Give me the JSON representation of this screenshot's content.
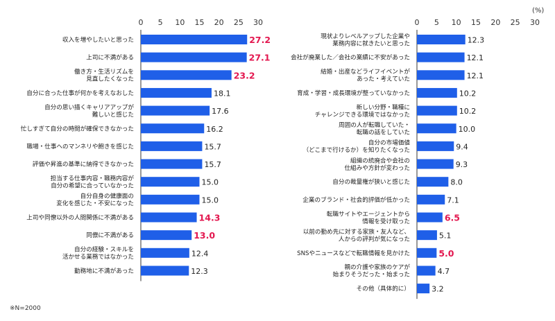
{
  "note": "※N=2000",
  "unit": "(%)",
  "colors": {
    "bar": "#1f5fe8",
    "highlight": "#e3174f",
    "axis": "#333333",
    "label": "#222222"
  },
  "chart_data": [
    {
      "type": "bar",
      "orientation": "horizontal",
      "xlim": [
        0,
        30
      ],
      "xticks": [
        0,
        5,
        10,
        15,
        20,
        25,
        30
      ],
      "grid": false,
      "categories": [
        "収入を増やしたいと思った",
        "上司に不満がある",
        "働き方・生活リズムを\n見直したくなった",
        "自分に合った仕事が何かを考えなおした",
        "自分の思い描くキャリアアップが\n難しいと感じた",
        "忙しすぎて自分の時間が確保できなかった",
        "職場・仕事へのマンネリや飽きを感じた",
        "評価や昇進の基準に納得できなかった",
        "担当する仕事内容・職務内容が\n自分の希望に合っていなかった",
        "自分自身の健康面の\n変化を感じた・不安になった",
        "上司や同僚以外の人間関係に不満がある",
        "同僚に不満がある",
        "自分の経験・スキルを\n活かせる業務ではなかった",
        "勤務地に不満があった"
      ],
      "values": [
        27.2,
        27.1,
        23.2,
        18.1,
        17.6,
        16.2,
        15.7,
        15.7,
        15.0,
        15.0,
        14.3,
        13.0,
        12.4,
        12.3
      ],
      "value_labels": [
        "27.2",
        "27.1",
        "23.2",
        "18.1",
        "17.6",
        "16.2",
        "15.7",
        "15.7",
        "15.0",
        "15.0",
        "14.3",
        "13.0",
        "12.4",
        "12.3"
      ],
      "highlight": [
        true,
        true,
        true,
        false,
        false,
        false,
        false,
        false,
        false,
        false,
        true,
        true,
        false,
        false
      ]
    },
    {
      "type": "bar",
      "orientation": "horizontal",
      "xlim": [
        0,
        30
      ],
      "xticks": [
        0,
        5,
        10,
        15,
        20,
        25,
        30
      ],
      "grid": false,
      "categories": [
        "現状よりレベルアップした企業や\n業務内容に就きたいと思った",
        "会社が廃業した／会社の業績に不安があった",
        "結婚・出産などライフイベントが\nあった・考えていた",
        "育成・学習・成長環境が整っていなかった",
        "新しい分野・職種に\nチャレンジできる環境ではなかった",
        "周囲の人が転職していた・\n転職の話をしていた",
        "自分の市場価値\n（どこまで行けるか）を知りたくなった",
        "組織の統廃合や会社の\n仕組みや方針が変わった",
        "自分の裁量権が狭いと感じた",
        "企業のブランド・社会的評価が低かった",
        "転職サイトやエージェントから\n情報を受け取った",
        "以前の勤め先に対する家族・友人など、\n人からの評判が気になった",
        "SNSやニュースなどで転職情報を見かけた",
        "親の介護や家族のケアが\n始まりそうだった・始まった",
        "その他（具体的に）"
      ],
      "values": [
        12.3,
        12.1,
        12.1,
        10.2,
        10.2,
        10.0,
        9.4,
        9.3,
        8.0,
        7.1,
        6.5,
        5.1,
        5.0,
        4.7,
        3.2
      ],
      "value_labels": [
        "12.3",
        "12.1",
        "12.1",
        "10.2",
        "10.2",
        "10.0",
        "9.4",
        "9.3",
        "8.0",
        "7.1",
        "6.5",
        "5.1",
        "5.0",
        "4.7",
        "3.2"
      ],
      "highlight": [
        false,
        false,
        false,
        false,
        false,
        false,
        false,
        false,
        false,
        false,
        true,
        false,
        true,
        false,
        false
      ]
    }
  ]
}
